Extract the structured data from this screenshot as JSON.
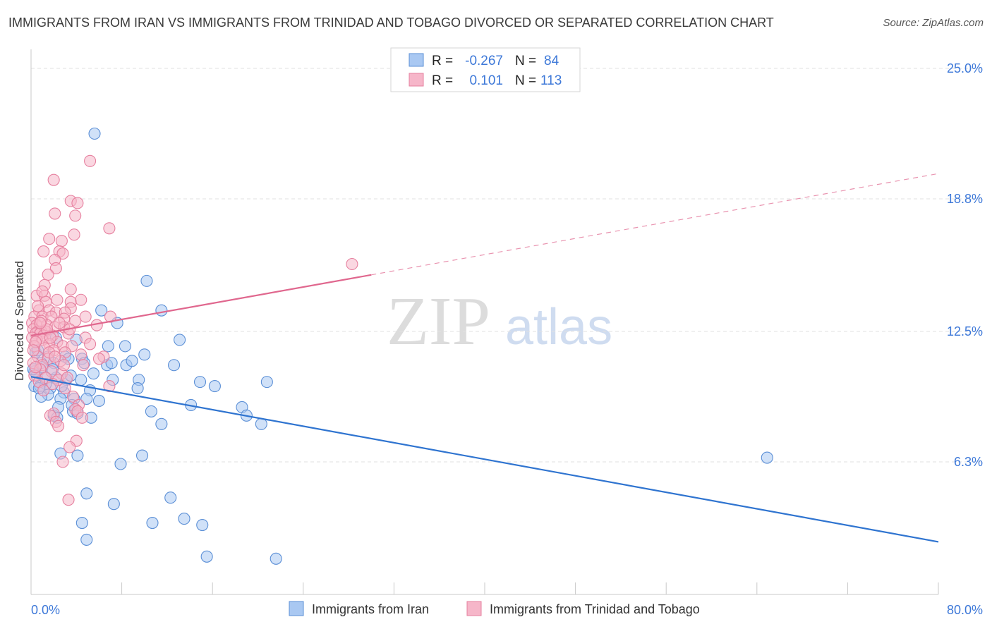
{
  "header": {
    "title": "IMMIGRANTS FROM IRAN VS IMMIGRANTS FROM TRINIDAD AND TOBAGO DIVORCED OR SEPARATED CORRELATION CHART",
    "source": "Source: ZipAtlas.com"
  },
  "watermark": {
    "zip": "ZIP",
    "atlas": "atlas"
  },
  "colors": {
    "iran": "#a9c8f2",
    "iran_stroke": "#5b8fd6",
    "iran_line": "#2f74d0",
    "tt": "#f6b6c9",
    "tt_stroke": "#e6809f",
    "tt_line": "#e0678e",
    "axis_text": "#3d78d8",
    "grid": "#e2e2e2"
  },
  "legend": {
    "rows": [
      {
        "r_label": "R =",
        "r_value": "-0.267",
        "n_label": "N =",
        "n_value": "84"
      },
      {
        "r_label": "R =",
        "r_value": "0.101",
        "n_label": "N =",
        "n_value": "113"
      }
    ]
  },
  "chart_data": {
    "type": "scatter",
    "title": "IMMIGRANTS FROM IRAN VS IMMIGRANTS FROM TRINIDAD AND TOBAGO DIVORCED OR SEPARATED CORRELATION CHART",
    "xlabel": "",
    "ylabel": "Divorced or Separated",
    "xlim": [
      0,
      80
    ],
    "ylim": [
      0,
      25.6
    ],
    "x_tick_labels": [
      "0.0%",
      "80.0%"
    ],
    "y_ticks": [
      6.3,
      12.5,
      18.8,
      25.0
    ],
    "y_tick_labels": [
      "6.3%",
      "12.5%",
      "18.8%",
      "25.0%"
    ],
    "grid": "horizontal dashed",
    "legend_position": "top-center",
    "series": [
      {
        "name": "Immigrants from Iran",
        "color": "#a9c8f2",
        "r": -0.267,
        "n": 84,
        "trend": {
          "x": [
            0,
            80
          ],
          "y": [
            10.35,
            2.5
          ],
          "style": "solid"
        },
        "points": [
          [
            5.6,
            21.9
          ],
          [
            10.2,
            14.9
          ],
          [
            6.2,
            13.5
          ],
          [
            11.5,
            13.5
          ],
          [
            7.6,
            12.9
          ],
          [
            13.1,
            12.1
          ],
          [
            0.4,
            11.5
          ],
          [
            1.5,
            11.3
          ],
          [
            3.0,
            11.3
          ],
          [
            4.5,
            11.2
          ],
          [
            6.8,
            11.8
          ],
          [
            8.3,
            11.8
          ],
          [
            10.0,
            11.4
          ],
          [
            12.6,
            10.9
          ],
          [
            8.4,
            10.9
          ],
          [
            6.7,
            10.9
          ],
          [
            4.7,
            11.0
          ],
          [
            3.3,
            11.2
          ],
          [
            2.0,
            11.0
          ],
          [
            0.9,
            11.0
          ],
          [
            0.3,
            10.6
          ],
          [
            0.5,
            10.4
          ],
          [
            1.2,
            10.3
          ],
          [
            2.2,
            10.3
          ],
          [
            3.1,
            10.2
          ],
          [
            4.4,
            10.2
          ],
          [
            7.2,
            10.2
          ],
          [
            9.5,
            10.2
          ],
          [
            14.9,
            10.1
          ],
          [
            20.8,
            10.1
          ],
          [
            16.2,
            9.9
          ],
          [
            9.4,
            9.8
          ],
          [
            0.3,
            9.9
          ],
          [
            0.8,
            9.9
          ],
          [
            1.7,
            9.8
          ],
          [
            2.9,
            9.6
          ],
          [
            5.2,
            9.7
          ],
          [
            1.5,
            9.5
          ],
          [
            0.9,
            9.4
          ],
          [
            3.8,
            9.3
          ],
          [
            2.6,
            9.3
          ],
          [
            4.9,
            9.3
          ],
          [
            14.1,
            9.0
          ],
          [
            18.6,
            8.9
          ],
          [
            19.0,
            8.5
          ],
          [
            3.7,
            8.7
          ],
          [
            2.0,
            8.5
          ],
          [
            2.3,
            8.4
          ],
          [
            4.1,
            8.6
          ],
          [
            5.3,
            8.4
          ],
          [
            20.3,
            8.1
          ],
          [
            11.5,
            8.1
          ],
          [
            64.9,
            6.5
          ],
          [
            2.6,
            6.7
          ],
          [
            4.1,
            6.6
          ],
          [
            9.8,
            6.6
          ],
          [
            7.9,
            6.2
          ],
          [
            4.9,
            4.8
          ],
          [
            7.3,
            4.3
          ],
          [
            12.3,
            4.6
          ],
          [
            13.5,
            3.6
          ],
          [
            4.5,
            3.4
          ],
          [
            10.7,
            3.4
          ],
          [
            15.1,
            3.3
          ],
          [
            4.9,
            2.6
          ],
          [
            15.5,
            1.8
          ],
          [
            21.6,
            1.7
          ],
          [
            1.0,
            10.8
          ],
          [
            0.6,
            11.6
          ],
          [
            1.3,
            10.0
          ],
          [
            2.7,
            9.9
          ],
          [
            5.5,
            10.5
          ],
          [
            0.2,
            10.7
          ],
          [
            3.5,
            10.4
          ],
          [
            8.9,
            11.1
          ],
          [
            7.1,
            11.0
          ],
          [
            2.2,
            12.2
          ],
          [
            4.0,
            12.1
          ],
          [
            0.7,
            9.8
          ],
          [
            1.9,
            10.7
          ],
          [
            3.6,
            9.0
          ],
          [
            2.4,
            8.9
          ],
          [
            6.0,
            9.2
          ],
          [
            10.6,
            8.7
          ]
        ]
      },
      {
        "name": "Immigrants from Trinidad and Tobago",
        "color": "#f6b6c9",
        "r": 0.101,
        "n": 113,
        "trend": {
          "x": [
            0,
            80
          ],
          "y": [
            12.3,
            20.0
          ],
          "solid_until_x": 30,
          "style": "solid then dashed"
        },
        "points": [
          [
            5.2,
            20.6
          ],
          [
            2.0,
            19.7
          ],
          [
            3.5,
            18.7
          ],
          [
            4.1,
            18.6
          ],
          [
            2.1,
            18.1
          ],
          [
            3.9,
            18.0
          ],
          [
            6.9,
            17.4
          ],
          [
            1.6,
            16.9
          ],
          [
            2.7,
            16.8
          ],
          [
            3.8,
            17.1
          ],
          [
            1.1,
            16.3
          ],
          [
            2.5,
            16.3
          ],
          [
            2.8,
            16.2
          ],
          [
            2.1,
            15.9
          ],
          [
            2.2,
            15.5
          ],
          [
            1.5,
            15.2
          ],
          [
            28.3,
            15.7
          ],
          [
            1.2,
            14.7
          ],
          [
            3.5,
            14.5
          ],
          [
            0.5,
            14.2
          ],
          [
            1.2,
            14.2
          ],
          [
            3.5,
            13.9
          ],
          [
            4.4,
            14.0
          ],
          [
            1.3,
            13.9
          ],
          [
            3.5,
            13.6
          ],
          [
            0.7,
            13.5
          ],
          [
            1.6,
            13.5
          ],
          [
            2.2,
            13.4
          ],
          [
            3.0,
            13.4
          ],
          [
            0.3,
            13.2
          ],
          [
            1.0,
            13.2
          ],
          [
            1.8,
            13.2
          ],
          [
            2.9,
            13.1
          ],
          [
            7.0,
            13.2
          ],
          [
            0.1,
            12.9
          ],
          [
            0.5,
            12.8
          ],
          [
            1.4,
            12.8
          ],
          [
            2.1,
            12.7
          ],
          [
            2.9,
            12.7
          ],
          [
            0.2,
            12.6
          ],
          [
            0.6,
            12.5
          ],
          [
            0.9,
            12.5
          ],
          [
            1.3,
            12.5
          ],
          [
            0.4,
            12.4
          ],
          [
            0.8,
            12.4
          ],
          [
            1.1,
            12.3
          ],
          [
            1.9,
            12.3
          ],
          [
            3.3,
            12.4
          ],
          [
            0.1,
            12.2
          ],
          [
            0.5,
            12.1
          ],
          [
            1.0,
            12.1
          ],
          [
            2.3,
            12.0
          ],
          [
            4.8,
            12.2
          ],
          [
            1.6,
            11.9
          ],
          [
            2.8,
            11.8
          ],
          [
            3.6,
            11.8
          ],
          [
            5.2,
            11.9
          ],
          [
            0.3,
            11.8
          ],
          [
            1.2,
            11.7
          ],
          [
            2.0,
            11.6
          ],
          [
            3.0,
            11.5
          ],
          [
            4.4,
            11.4
          ],
          [
            6.4,
            11.3
          ],
          [
            0.6,
            11.3
          ],
          [
            1.5,
            11.2
          ],
          [
            2.6,
            11.1
          ],
          [
            0.2,
            11.0
          ],
          [
            1.0,
            10.9
          ],
          [
            4.6,
            10.9
          ],
          [
            6.0,
            11.2
          ],
          [
            0.8,
            10.7
          ],
          [
            1.8,
            10.6
          ],
          [
            2.7,
            10.5
          ],
          [
            0.3,
            10.4
          ],
          [
            1.3,
            10.3
          ],
          [
            2.4,
            10.2
          ],
          [
            3.2,
            10.3
          ],
          [
            0.7,
            10.1
          ],
          [
            1.9,
            10.0
          ],
          [
            6.9,
            9.9
          ],
          [
            3.0,
            9.8
          ],
          [
            1.1,
            9.7
          ],
          [
            3.7,
            9.4
          ],
          [
            4.2,
            9.0
          ],
          [
            3.9,
            8.8
          ],
          [
            2.0,
            8.6
          ],
          [
            1.7,
            8.5
          ],
          [
            4.1,
            8.7
          ],
          [
            4.5,
            8.4
          ],
          [
            2.2,
            8.2
          ],
          [
            2.4,
            8.0
          ],
          [
            4.0,
            7.3
          ],
          [
            3.4,
            7.0
          ],
          [
            2.8,
            6.3
          ],
          [
            3.3,
            4.5
          ],
          [
            0.4,
            12.0
          ],
          [
            1.4,
            12.6
          ],
          [
            0.9,
            13.0
          ],
          [
            2.5,
            12.9
          ],
          [
            0.2,
            11.6
          ],
          [
            1.7,
            12.2
          ],
          [
            3.9,
            13.0
          ],
          [
            0.6,
            13.7
          ],
          [
            2.3,
            14.0
          ],
          [
            1.0,
            14.4
          ],
          [
            4.8,
            13.2
          ],
          [
            0.4,
            10.8
          ],
          [
            2.9,
            10.9
          ],
          [
            1.6,
            11.5
          ],
          [
            3.4,
            12.6
          ],
          [
            0.8,
            12.9
          ],
          [
            5.8,
            12.8
          ],
          [
            2.1,
            11.3
          ]
        ]
      }
    ]
  },
  "bottom_legend": {
    "items": [
      {
        "label": "Immigrants from Iran"
      },
      {
        "label": "Immigrants from Trinidad and Tobago"
      }
    ]
  }
}
